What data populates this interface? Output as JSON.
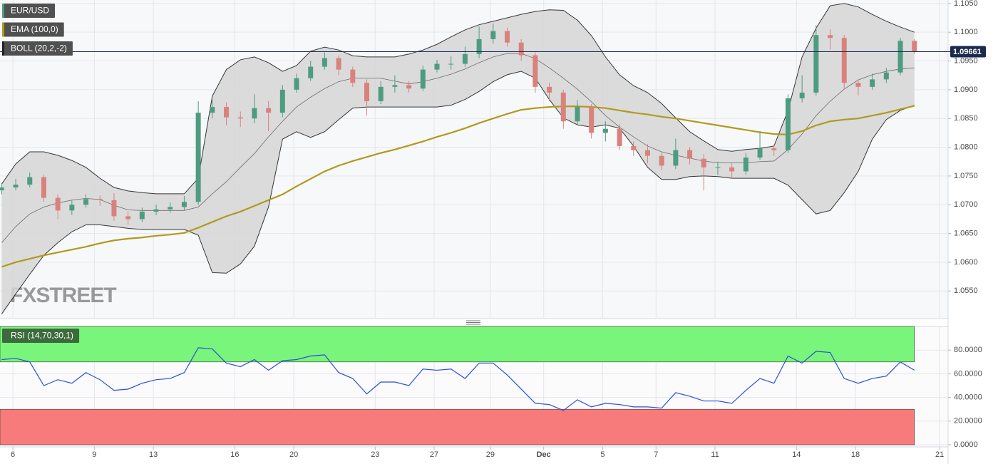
{
  "chart_data": [
    {
      "type": "candlestick",
      "symbol": "EUR/USD",
      "x": [
        -0.4,
        0.1,
        0.6,
        1.1,
        1.6,
        2.1,
        2.6,
        3.1,
        3.6,
        4.1,
        4.6,
        5.1,
        5.6,
        6.1,
        6.6,
        7.1,
        7.6,
        8.1,
        8.6,
        9.1,
        9.6,
        10.1,
        10.6,
        11.1,
        11.6,
        12.1,
        12.6,
        13.1,
        13.6,
        14.1,
        14.6,
        15.1,
        15.6,
        16.1,
        16.6,
        17.1,
        17.6,
        18.1,
        18.6,
        19.1,
        19.6,
        20.1,
        20.6,
        21.1,
        21.6,
        22.1,
        22.6,
        23.1,
        23.6,
        24.1,
        24.6,
        25.1,
        25.6,
        26.1,
        26.6,
        27.1,
        27.6,
        28.1,
        28.6,
        29.1,
        29.6,
        30.1,
        30.6,
        31.1,
        31.6,
        32.1
      ],
      "open": [
        1.0725,
        1.073,
        1.0735,
        1.0748,
        1.0712,
        1.069,
        1.07,
        1.071,
        1.0708,
        1.068,
        1.0675,
        1.0688,
        1.0692,
        1.0696,
        1.0705,
        1.086,
        1.087,
        1.0852,
        1.085,
        1.0868,
        1.086,
        1.09,
        1.092,
        1.094,
        1.0955,
        1.0935,
        1.0912,
        1.088,
        1.0905,
        1.0908,
        1.0902,
        1.0935,
        1.0945,
        1.0945,
        1.0962,
        1.0988,
        1.1002,
        1.0982,
        1.096,
        1.0905,
        1.0895,
        1.0845,
        1.087,
        1.0825,
        1.0832,
        1.0802,
        1.0795,
        1.0785,
        1.0768,
        1.0795,
        1.078,
        1.0765,
        1.0765,
        1.0758,
        1.0782,
        1.0798,
        1.0795,
        1.0885,
        1.0895,
        1.0995,
        1.099,
        1.0912,
        1.0905,
        1.0918,
        1.093,
        1.0985
      ],
      "high": [
        1.0738,
        1.0745,
        1.0756,
        1.0752,
        1.0718,
        1.0708,
        1.0718,
        1.0716,
        1.072,
        1.0688,
        1.0695,
        1.07,
        1.0704,
        1.0715,
        1.088,
        1.0882,
        1.0878,
        1.0862,
        1.0892,
        1.088,
        1.0908,
        1.0928,
        1.095,
        1.0965,
        1.096,
        1.094,
        1.0918,
        1.0915,
        1.0925,
        1.0915,
        1.0942,
        1.0952,
        1.0958,
        1.0975,
        1.101,
        1.1015,
        1.1008,
        1.0988,
        1.0965,
        1.0912,
        1.09,
        1.0882,
        1.0875,
        1.0845,
        1.084,
        1.081,
        1.0805,
        1.0792,
        1.0815,
        1.08,
        1.0788,
        1.0775,
        1.0772,
        1.079,
        1.0828,
        1.0805,
        1.0892,
        1.0925,
        1.1012,
        1.1005,
        1.0995,
        1.0918,
        1.0928,
        1.0938,
        1.099,
        1.0988
      ],
      "low": [
        1.0718,
        1.0725,
        1.073,
        1.0705,
        1.0675,
        1.0682,
        1.0695,
        1.0698,
        1.0672,
        1.0665,
        1.067,
        1.0682,
        1.0686,
        1.069,
        1.07,
        1.085,
        1.0838,
        1.0835,
        1.0842,
        1.0828,
        1.0852,
        1.0895,
        1.0915,
        1.0935,
        1.0925,
        1.0905,
        1.0855,
        1.0875,
        1.0895,
        1.0895,
        1.0898,
        1.093,
        1.0935,
        1.094,
        1.0955,
        1.098,
        1.0975,
        1.095,
        1.0895,
        1.088,
        1.0832,
        1.0838,
        1.0815,
        1.081,
        1.0795,
        1.0785,
        1.0772,
        1.076,
        1.0762,
        1.077,
        1.0725,
        1.0752,
        1.0745,
        1.0752,
        1.0778,
        1.0785,
        1.079,
        1.0878,
        1.089,
        1.097,
        1.09,
        1.089,
        1.09,
        1.0912,
        1.0925,
        1.0962
      ],
      "close": [
        1.073,
        1.0735,
        1.0748,
        1.0712,
        1.069,
        1.07,
        1.071,
        1.0708,
        1.068,
        1.0675,
        1.0688,
        1.0692,
        1.0696,
        1.0705,
        1.086,
        1.087,
        1.0852,
        1.085,
        1.0868,
        1.086,
        1.09,
        1.092,
        1.094,
        1.0955,
        1.0935,
        1.0912,
        1.088,
        1.0905,
        1.0908,
        1.0902,
        1.0935,
        1.0945,
        1.0945,
        1.0962,
        1.0988,
        1.1002,
        1.0982,
        1.096,
        1.0905,
        1.0895,
        1.0845,
        1.087,
        1.0825,
        1.0832,
        1.0802,
        1.0795,
        1.0785,
        1.0768,
        1.0795,
        1.078,
        1.0765,
        1.0765,
        1.0758,
        1.0782,
        1.0798,
        1.0795,
        1.0885,
        1.0895,
        1.0995,
        1.099,
        1.0912,
        1.0905,
        1.0918,
        1.093,
        1.0985,
        1.0966
      ],
      "up_color": "#4e9c80",
      "down_color": "#d9827c",
      "overlays": [
        {
          "name": "EMA (100,0)",
          "color": "#b19a1b",
          "values": [
            1.0592,
            1.06,
            1.0606,
            1.0612,
            1.0617,
            1.0622,
            1.0627,
            1.0633,
            1.0638,
            1.0641,
            1.0643,
            1.0646,
            1.0648,
            1.0651,
            1.066,
            1.067,
            1.068,
            1.0688,
            1.0698,
            1.0708,
            1.0718,
            1.0732,
            1.0745,
            1.0758,
            1.0768,
            1.0776,
            1.0783,
            1.079,
            1.0796,
            1.0803,
            1.081,
            1.0818,
            1.0825,
            1.0833,
            1.0842,
            1.085,
            1.0858,
            1.0865,
            1.0868,
            1.087,
            1.0871,
            1.0871,
            1.087,
            1.0868,
            1.0864,
            1.086,
            1.0857,
            1.0853,
            1.085,
            1.0846,
            1.0842,
            1.0838,
            1.0834,
            1.083,
            1.0826,
            1.0823,
            1.0822,
            1.0828,
            1.0838,
            1.0845,
            1.0848,
            1.085,
            1.0855,
            1.086,
            1.0866,
            1.0872
          ]
        },
        {
          "name": "BOLL (20,2,-2)",
          "color": "#222222",
          "fill": "#d6d6d6",
          "upper": [
            1.0736,
            1.0771,
            1.0792,
            1.0792,
            1.0786,
            1.0777,
            1.0765,
            1.0746,
            1.073,
            1.0724,
            1.0721,
            1.0719,
            1.0719,
            1.0719,
            1.0746,
            1.0889,
            1.0935,
            1.0952,
            1.0957,
            1.0947,
            1.0932,
            1.0942,
            1.0967,
            1.0974,
            1.0969,
            1.0959,
            1.0957,
            1.0957,
            1.0957,
            1.0962,
            1.0969,
            1.0979,
            1.0992,
            1.1004,
            1.1013,
            1.1019,
            1.1025,
            1.1031,
            1.1036,
            1.1039,
            1.1038,
            1.1021,
            1.0994,
            1.0957,
            1.0926,
            1.0907,
            1.0895,
            1.0876,
            1.0851,
            1.0827,
            1.0811,
            1.0796,
            1.0793,
            1.0796,
            1.0798,
            1.0802,
            1.0864,
            1.0957,
            1.1007,
            1.1046,
            1.105,
            1.1044,
            1.1031,
            1.1019,
            1.1009,
            1.1
          ],
          "middle": [
            1.0634,
            1.0662,
            1.0684,
            1.0696,
            1.0703,
            1.0708,
            1.0711,
            1.0709,
            1.0699,
            1.0691,
            1.069,
            1.069,
            1.069,
            1.069,
            1.0696,
            1.0719,
            1.074,
            1.0765,
            1.0789,
            1.0818,
            1.0845,
            1.087,
            1.0887,
            1.0902,
            1.0914,
            1.092,
            1.092,
            1.092,
            1.0915,
            1.091,
            1.0914,
            1.092,
            1.0927,
            1.0936,
            1.0947,
            1.0957,
            1.0963,
            1.0963,
            1.0954,
            1.0938,
            1.092,
            1.0901,
            1.0879,
            1.0855,
            1.0835,
            1.0818,
            1.0802,
            1.0792,
            1.0786,
            1.0781,
            1.0776,
            1.0773,
            1.0773,
            1.0773,
            1.0775,
            1.0776,
            1.0796,
            1.0823,
            1.0855,
            1.088,
            1.0901,
            1.0917,
            1.0926,
            1.0932,
            1.0936,
            1.0938
          ],
          "lower": [
            1.051,
            1.0545,
            1.0579,
            1.0612,
            1.0634,
            1.0653,
            1.0665,
            1.0665,
            1.0662,
            1.0659,
            1.0657,
            1.0657,
            1.0657,
            1.0657,
            1.0647,
            1.0582,
            1.0581,
            1.0597,
            1.0628,
            1.0696,
            1.0814,
            1.0827,
            1.0817,
            1.0827,
            1.0848,
            1.0868,
            1.087,
            1.087,
            1.087,
            1.087,
            1.087,
            1.087,
            1.0873,
            1.0883,
            1.0897,
            1.0914,
            1.0926,
            1.0932,
            1.092,
            1.0883,
            1.0851,
            1.0839,
            1.0835,
            1.0839,
            1.0833,
            1.0802,
            1.0765,
            1.0744,
            1.0744,
            1.0749,
            1.075,
            1.0749,
            1.0746,
            1.0746,
            1.0746,
            1.0746,
            1.0734,
            1.0709,
            1.0684,
            1.069,
            1.0721,
            1.0758,
            1.0814,
            1.0848,
            1.0864,
            1.0873
          ]
        }
      ],
      "last_price": 1.09661,
      "xlim": [
        -0.46,
        33.3
      ],
      "ylim": [
        1.0502,
        1.1056
      ],
      "yticks": [
        {
          "value": 1.055,
          "label": "1.0550"
        },
        {
          "value": 1.06,
          "label": "1.0600"
        },
        {
          "value": 1.065,
          "label": "1.0650"
        },
        {
          "value": 1.07,
          "label": "1.0700"
        },
        {
          "value": 1.075,
          "label": "1.0750"
        },
        {
          "value": 1.08,
          "label": "1.0800"
        },
        {
          "value": 1.085,
          "label": "1.0850"
        },
        {
          "value": 1.09,
          "label": "1.0900"
        },
        {
          "value": 1.095,
          "label": "1.0950"
        },
        {
          "value": 1.1,
          "label": "1.1000"
        },
        {
          "value": 1.105,
          "label": "1.1050"
        }
      ],
      "grid": true,
      "watermark": "FXSTREET"
    },
    {
      "type": "line",
      "name": "RSI (14,70,30,1)",
      "color": "#2b4fd8",
      "x": [
        -0.4,
        0.1,
        0.6,
        1.1,
        1.6,
        2.1,
        2.6,
        3.1,
        3.6,
        4.1,
        4.6,
        5.1,
        5.6,
        6.1,
        6.6,
        7.1,
        7.6,
        8.1,
        8.6,
        9.1,
        9.6,
        10.1,
        10.6,
        11.1,
        11.6,
        12.1,
        12.6,
        13.1,
        13.6,
        14.1,
        14.6,
        15.1,
        15.6,
        16.1,
        16.6,
        17.1,
        17.6,
        18.1,
        18.6,
        19.1,
        19.6,
        20.1,
        20.6,
        21.1,
        21.6,
        22.1,
        22.6,
        23.1,
        23.6,
        24.1,
        24.6,
        25.1,
        25.6,
        26.1,
        26.6,
        27.1,
        27.6,
        28.1,
        28.6,
        29.1,
        29.6,
        30.1,
        30.6,
        31.1,
        31.6,
        32.1
      ],
      "values": [
        72,
        73,
        70,
        50,
        55,
        52,
        61,
        55,
        46,
        47,
        52,
        55,
        56,
        61,
        82,
        81,
        69,
        66,
        72,
        63,
        71,
        72,
        75,
        76,
        61,
        56,
        43,
        53,
        53,
        50,
        64,
        63,
        64,
        56,
        69,
        69,
        59,
        47,
        35,
        34,
        29,
        38,
        32,
        35,
        34,
        32,
        32,
        31,
        44,
        41,
        37,
        37,
        35,
        46,
        56,
        52,
        75,
        69,
        79,
        78,
        56,
        52,
        56,
        58,
        70,
        63
      ],
      "bands": [
        {
          "from": 70,
          "to": 100,
          "color": "#78f57a"
        },
        {
          "from": 0,
          "to": 30,
          "color": "#f77b7b"
        }
      ],
      "xlim": [
        -0.46,
        33.3
      ],
      "ylim": [
        0,
        100
      ],
      "yticks": [
        {
          "value": 0,
          "label": "0.0000"
        },
        {
          "value": 20,
          "label": "20.0000"
        },
        {
          "value": 40,
          "label": "40.0000"
        },
        {
          "value": 60,
          "label": "60.0000"
        },
        {
          "value": 80,
          "label": "80.0000"
        }
      ],
      "xticks": [
        {
          "value": 0,
          "label": "6"
        },
        {
          "value": 2.9,
          "label": "9"
        },
        {
          "value": 5.0,
          "label": "13"
        },
        {
          "value": 7.9,
          "label": "16"
        },
        {
          "value": 10.0,
          "label": "20"
        },
        {
          "value": 12.9,
          "label": "23"
        },
        {
          "value": 15.0,
          "label": "27"
        },
        {
          "value": 17.0,
          "label": "29"
        },
        {
          "value": 18.9,
          "label": "Dec"
        },
        {
          "value": 21.0,
          "label": "5"
        },
        {
          "value": 22.9,
          "label": "7"
        },
        {
          "value": 25.0,
          "label": "11"
        },
        {
          "value": 27.9,
          "label": "14"
        },
        {
          "value": 30.0,
          "label": "18"
        },
        {
          "value": 33.0,
          "label": "21"
        }
      ],
      "grid": true
    }
  ]
}
